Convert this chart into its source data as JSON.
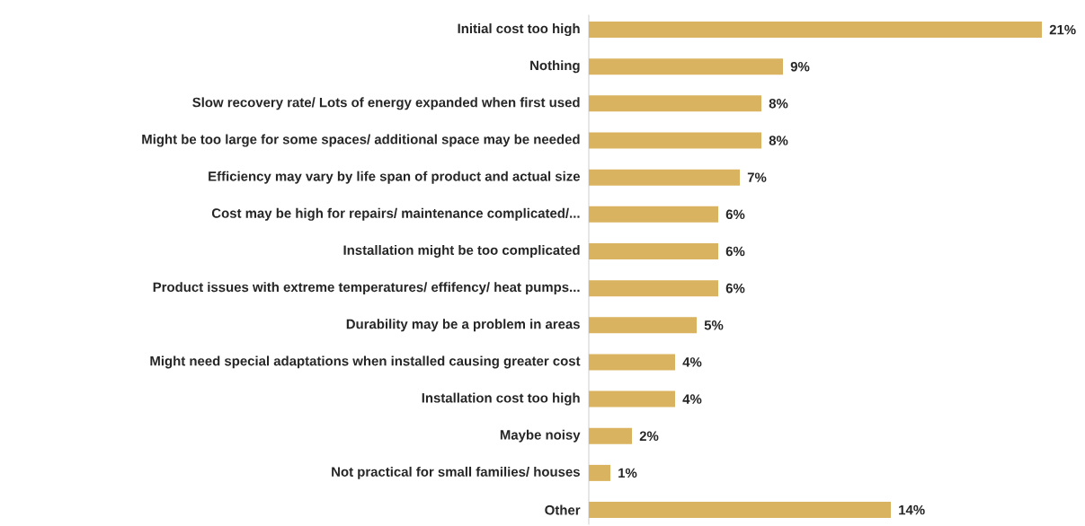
{
  "chart_data": {
    "type": "bar",
    "orientation": "horizontal",
    "color": "#d9b35f",
    "categories": [
      "Initial cost too high",
      "Nothing",
      "Slow recovery rate/ Lots of energy expanded when first used",
      "Might be too large for some spaces/ additional space may be needed",
      "Efficiency may vary by life span of product and actual size",
      "Cost may be high for repairs/ maintenance complicated/...",
      "Installation might be too complicated",
      "Product issues with extreme temperatures/ effifency/ heat pumps...",
      "Durability may be a problem in areas",
      "Might need special adaptations when installed causing greater cost",
      "Installation cost too high",
      "Maybe noisy",
      "Not practical for small families/ houses",
      "Other"
    ],
    "values": [
      21,
      9,
      8,
      8,
      7,
      6,
      6,
      6,
      5,
      4,
      4,
      2,
      1,
      14
    ],
    "value_labels": [
      "21%",
      "9%",
      "8%",
      "8%",
      "7%",
      "6%",
      "6%",
      "6%",
      "5%",
      "4%",
      "4%",
      "2%",
      "1%",
      "14%"
    ]
  }
}
